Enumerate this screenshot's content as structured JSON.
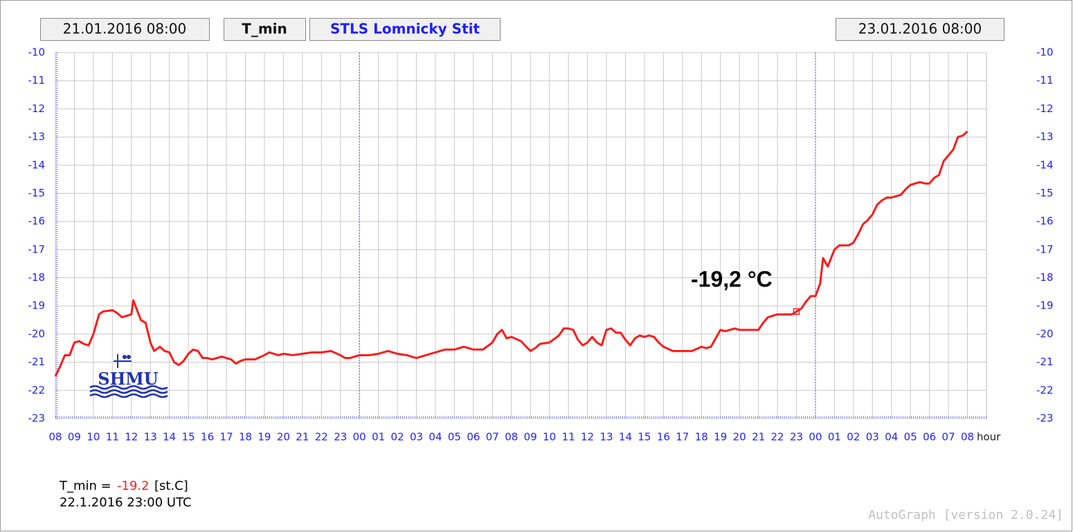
{
  "header": {
    "start": "21.01.2016 08:00",
    "station": "STLS Lomnicky Stit",
    "end": "23.01.2016 08:00"
  },
  "chart_data": {
    "type": "line",
    "x_label": "hour",
    "x": [
      0,
      0.25,
      0.5,
      0.75,
      1,
      1.25,
      1.5,
      1.75,
      2,
      2.3,
      2.5,
      3,
      3.25,
      3.5,
      3.75,
      4,
      4.1,
      4.5,
      4.75,
      5,
      5.2,
      5.5,
      5.75,
      6,
      6.25,
      6.5,
      6.75,
      7,
      7.25,
      7.5,
      7.75,
      8,
      8.25,
      8.5,
      8.75,
      9,
      9.25,
      9.5,
      9.75,
      10,
      10.5,
      11,
      11.25,
      11.5,
      11.75,
      12,
      12.5,
      13,
      13.5,
      14,
      14.5,
      15,
      15.25,
      15.5,
      16,
      16.5,
      17,
      17.5,
      18,
      18.5,
      19,
      19.5,
      20,
      20.5,
      21,
      21.5,
      22,
      22.5,
      23,
      23.25,
      23.5,
      23.75,
      24,
      24.5,
      25,
      25.25,
      25.5,
      26,
      26.5,
      26.75,
      27,
      27.25,
      27.5,
      27.75,
      28,
      28.25,
      28.5,
      28.75,
      29,
      29.25,
      29.5,
      29.75,
      30,
      30.25,
      30.5,
      30.75,
      31,
      31.25,
      31.5,
      31.75,
      32,
      32.5,
      33,
      33.5,
      34,
      34.25,
      34.5,
      34.75,
      35,
      35.25,
      35.5,
      35.75,
      36,
      36.5,
      37,
      37.25,
      37.5,
      37.75,
      38,
      38.5,
      38.75,
      39,
      39.25,
      39.5,
      39.75,
      40,
      40.25,
      40.4,
      40.65,
      40.85,
      41,
      41.25,
      41.75,
      42,
      42.25,
      42.5,
      42.75,
      43,
      43.25,
      43.5,
      43.75,
      44,
      44.25,
      44.5,
      44.75,
      45,
      45.25,
      45.5,
      45.75,
      46,
      46.25,
      46.5,
      46.75,
      47,
      47.25,
      47.5,
      47.75,
      48
    ],
    "series": [
      {
        "name": "T_min",
        "color": "#ff1a1a",
        "values": [
          -21.5,
          -21.15,
          -20.75,
          -20.75,
          -20.3,
          -20.25,
          -20.35,
          -20.4,
          -20.0,
          -19.3,
          -19.2,
          -19.15,
          -19.25,
          -19.4,
          -19.35,
          -19.3,
          -18.8,
          -19.5,
          -19.6,
          -20.3,
          -20.6,
          -20.45,
          -20.6,
          -20.65,
          -21.0,
          -21.1,
          -20.95,
          -20.7,
          -20.55,
          -20.6,
          -20.85,
          -20.85,
          -20.9,
          -20.85,
          -20.8,
          -20.85,
          -20.9,
          -21.05,
          -20.95,
          -20.9,
          -20.9,
          -20.75,
          -20.65,
          -20.7,
          -20.75,
          -20.7,
          -20.75,
          -20.7,
          -20.65,
          -20.65,
          -20.6,
          -20.75,
          -20.85,
          -20.85,
          -20.75,
          -20.75,
          -20.7,
          -20.6,
          -20.7,
          -20.75,
          -20.85,
          -20.75,
          -20.65,
          -20.55,
          -20.55,
          -20.45,
          -20.55,
          -20.55,
          -20.3,
          -20.0,
          -19.85,
          -20.15,
          -20.1,
          -20.25,
          -20.6,
          -20.5,
          -20.35,
          -20.3,
          -20.05,
          -19.8,
          -19.8,
          -19.85,
          -20.2,
          -20.4,
          -20.3,
          -20.1,
          -20.3,
          -20.4,
          -19.85,
          -19.8,
          -19.95,
          -19.95,
          -20.2,
          -20.4,
          -20.15,
          -20.05,
          -20.1,
          -20.05,
          -20.1,
          -20.3,
          -20.45,
          -20.6,
          -20.6,
          -20.6,
          -20.45,
          -20.5,
          -20.45,
          -20.15,
          -19.85,
          -19.9,
          -19.85,
          -19.8,
          -19.85,
          -19.85,
          -19.85,
          -19.6,
          -19.4,
          -19.35,
          -19.3,
          -19.3,
          -19.3,
          -19.2,
          -19.1,
          -18.85,
          -18.65,
          -18.65,
          -18.2,
          -17.3,
          -17.6,
          -17.25,
          -17.0,
          -16.85,
          -16.85,
          -16.75,
          -16.45,
          -16.1,
          -15.95,
          -15.75,
          -15.4,
          -15.25,
          -15.15,
          -15.15,
          -15.1,
          -15.05,
          -14.85,
          -14.7,
          -14.65,
          -14.6,
          -14.65,
          -14.65,
          -14.45,
          -14.35,
          -13.85,
          -13.65,
          -13.45,
          -13.0,
          -12.95,
          -12.8
        ]
      }
    ],
    "xlim": [
      0,
      49
    ],
    "xticks": [
      {
        "value": 0,
        "label": "08"
      },
      {
        "value": 1,
        "label": "09"
      },
      {
        "value": 2,
        "label": "10"
      },
      {
        "value": 3,
        "label": "11"
      },
      {
        "value": 4,
        "label": "12"
      },
      {
        "value": 5,
        "label": "13"
      },
      {
        "value": 6,
        "label": "14"
      },
      {
        "value": 7,
        "label": "15"
      },
      {
        "value": 8,
        "label": "16"
      },
      {
        "value": 9,
        "label": "17"
      },
      {
        "value": 10,
        "label": "18"
      },
      {
        "value": 11,
        "label": "19"
      },
      {
        "value": 12,
        "label": "20"
      },
      {
        "value": 13,
        "label": "21"
      },
      {
        "value": 14,
        "label": "22"
      },
      {
        "value": 15,
        "label": "23"
      },
      {
        "value": 16,
        "label": "00"
      },
      {
        "value": 17,
        "label": "01"
      },
      {
        "value": 18,
        "label": "02"
      },
      {
        "value": 19,
        "label": "03"
      },
      {
        "value": 20,
        "label": "04"
      },
      {
        "value": 21,
        "label": "05"
      },
      {
        "value": 22,
        "label": "06"
      },
      {
        "value": 23,
        "label": "07"
      },
      {
        "value": 24,
        "label": "08"
      },
      {
        "value": 25,
        "label": "09"
      },
      {
        "value": 26,
        "label": "10"
      },
      {
        "value": 27,
        "label": "11"
      },
      {
        "value": 28,
        "label": "12"
      },
      {
        "value": 29,
        "label": "13"
      },
      {
        "value": 30,
        "label": "14"
      },
      {
        "value": 31,
        "label": "15"
      },
      {
        "value": 32,
        "label": "16"
      },
      {
        "value": 33,
        "label": "17"
      },
      {
        "value": 34,
        "label": "18"
      },
      {
        "value": 35,
        "label": "19"
      },
      {
        "value": 36,
        "label": "20"
      },
      {
        "value": 37,
        "label": "21"
      },
      {
        "value": 38,
        "label": "22"
      },
      {
        "value": 39,
        "label": "23"
      },
      {
        "value": 40,
        "label": "00"
      },
      {
        "value": 41,
        "label": "01"
      },
      {
        "value": 42,
        "label": "02"
      },
      {
        "value": 43,
        "label": "03"
      },
      {
        "value": 44,
        "label": "04"
      },
      {
        "value": 45,
        "label": "05"
      },
      {
        "value": 46,
        "label": "06"
      },
      {
        "value": 47,
        "label": "07"
      },
      {
        "value": 48,
        "label": "08"
      }
    ],
    "ylim": [
      -23,
      -10
    ],
    "yticks": [
      -10,
      -11,
      -12,
      -13,
      -14,
      -15,
      -16,
      -17,
      -18,
      -19,
      -20,
      -21,
      -22,
      -23
    ],
    "grid": true,
    "day_lines": [
      16,
      40
    ],
    "marker": {
      "x": 39,
      "value": -19.2,
      "label": "-19,2 °C"
    }
  },
  "footer": {
    "label": "T_min =",
    "unit": "[st.C]",
    "time": "22.1.2016 23:00 UTC"
  },
  "logo": "SHMU",
  "watermark": "AutoGraph [version 2.0.24]"
}
